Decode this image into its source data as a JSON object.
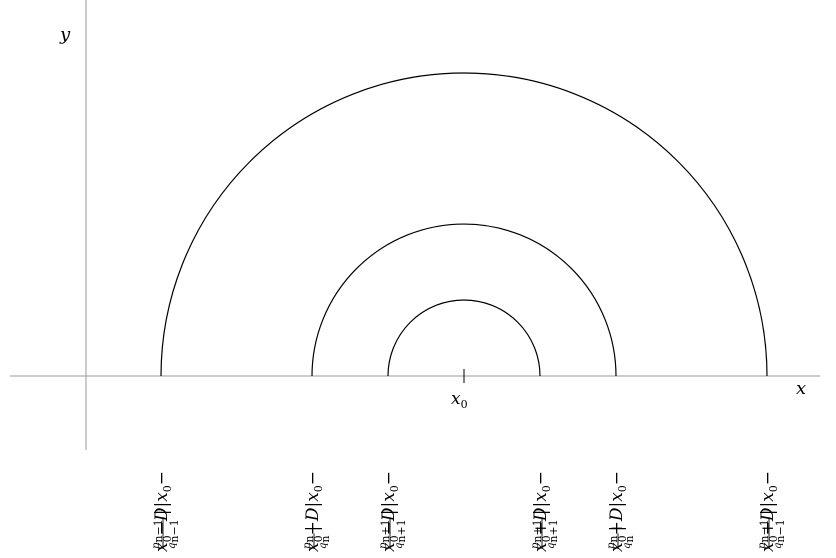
{
  "axes": {
    "x_label": "x",
    "y_label": "y"
  },
  "center": {
    "main": "x",
    "sub": "0"
  },
  "arcs": [
    {
      "name": "outer-arc",
      "level": "n-1"
    },
    {
      "name": "middle-arc",
      "level": "n"
    },
    {
      "name": "inner-arc",
      "level": "n+1"
    }
  ],
  "endpoint_labels": [
    {
      "sign": "−",
      "p_sub": "n−1",
      "q_sub": "n−1"
    },
    {
      "sign": "−",
      "p_sub": "n",
      "q_sub": "n"
    },
    {
      "sign": "−",
      "p_sub": "n+1",
      "q_sub": "n+1"
    },
    {
      "sign": "+",
      "p_sub": "n+1",
      "q_sub": "n+1"
    },
    {
      "sign": "+",
      "p_sub": "n",
      "q_sub": "n"
    },
    {
      "sign": "+",
      "p_sub": "n−1",
      "q_sub": "n−1"
    }
  ],
  "label_parts": {
    "x": "x",
    "x_sub": "0",
    "D": "D",
    "bar": "|",
    "p": "p",
    "q": "q"
  }
}
